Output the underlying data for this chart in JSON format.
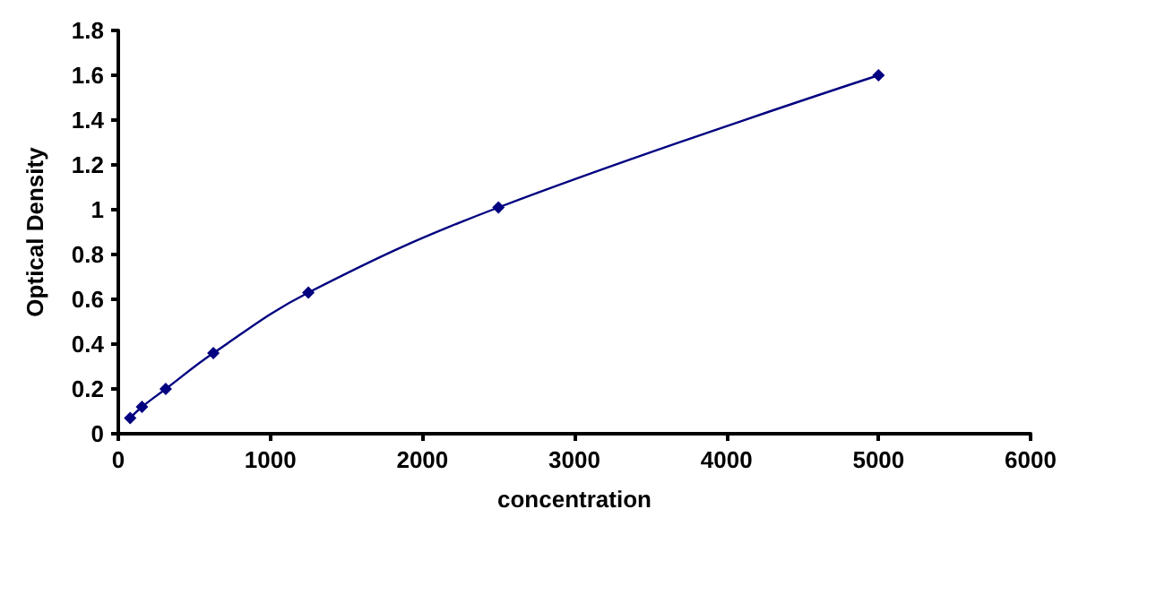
{
  "chart_data": {
    "type": "line",
    "xlabel": "concentration",
    "ylabel": "Optical Density",
    "x": [
      78,
      156,
      312,
      625,
      1250,
      2500,
      5000
    ],
    "series": [
      {
        "color": "#000080",
        "values": [
          0.07,
          0.12,
          0.2,
          0.36,
          0.63,
          1.01,
          1.6
        ]
      }
    ],
    "xlim": [
      0,
      6000
    ],
    "xticks": [
      0,
      1000,
      2000,
      3000,
      4000,
      5000,
      6000
    ],
    "ylim": [
      0,
      1.8
    ],
    "yticks": [
      0,
      0.2,
      0.4,
      0.6,
      0.8,
      1,
      1.2,
      1.4,
      1.6,
      1.8
    ],
    "grid": false,
    "marker": "diamond",
    "line_style": "solid"
  }
}
